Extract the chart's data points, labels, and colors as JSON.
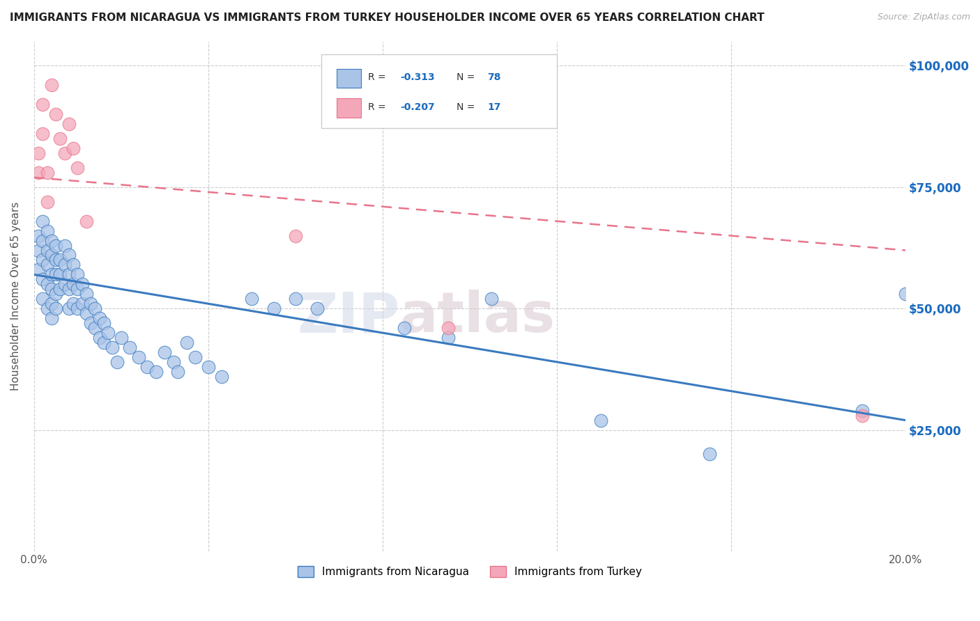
{
  "title": "IMMIGRANTS FROM NICARAGUA VS IMMIGRANTS FROM TURKEY HOUSEHOLDER INCOME OVER 65 YEARS CORRELATION CHART",
  "source": "Source: ZipAtlas.com",
  "ylabel": "Householder Income Over 65 years",
  "xlim": [
    0.0,
    0.2
  ],
  "ylim": [
    0,
    105000
  ],
  "grid_color": "#cccccc",
  "background_color": "#ffffff",
  "nicaragua_color": "#aac4e8",
  "turkey_color": "#f4a7b9",
  "nicaragua_line_color": "#3a7abf",
  "turkey_line_color": "#e8748a",
  "nicaragua_R": "-0.313",
  "nicaragua_N": "78",
  "turkey_R": "-0.207",
  "turkey_N": "17",
  "watermark_zip": "ZIP",
  "watermark_atlas": "atlas",
  "nicaragua_trend_x": [
    0.0,
    0.2
  ],
  "nicaragua_trend_y": [
    57000,
    27000
  ],
  "turkey_trend_x": [
    0.0,
    0.2
  ],
  "turkey_trend_y": [
    77000,
    62000
  ],
  "nicaragua_points_x": [
    0.001,
    0.001,
    0.001,
    0.002,
    0.002,
    0.002,
    0.002,
    0.002,
    0.003,
    0.003,
    0.003,
    0.003,
    0.003,
    0.004,
    0.004,
    0.004,
    0.004,
    0.004,
    0.004,
    0.005,
    0.005,
    0.005,
    0.005,
    0.005,
    0.006,
    0.006,
    0.006,
    0.007,
    0.007,
    0.007,
    0.008,
    0.008,
    0.008,
    0.008,
    0.009,
    0.009,
    0.009,
    0.01,
    0.01,
    0.01,
    0.011,
    0.011,
    0.012,
    0.012,
    0.013,
    0.013,
    0.014,
    0.014,
    0.015,
    0.015,
    0.016,
    0.016,
    0.017,
    0.018,
    0.019,
    0.02,
    0.022,
    0.024,
    0.026,
    0.028,
    0.03,
    0.032,
    0.033,
    0.035,
    0.037,
    0.04,
    0.043,
    0.05,
    0.055,
    0.06,
    0.065,
    0.085,
    0.095,
    0.105,
    0.13,
    0.155,
    0.19,
    0.2
  ],
  "nicaragua_points_y": [
    65000,
    62000,
    58000,
    68000,
    64000,
    60000,
    56000,
    52000,
    66000,
    62000,
    59000,
    55000,
    50000,
    64000,
    61000,
    57000,
    54000,
    51000,
    48000,
    63000,
    60000,
    57000,
    53000,
    50000,
    60000,
    57000,
    54000,
    63000,
    59000,
    55000,
    61000,
    57000,
    54000,
    50000,
    59000,
    55000,
    51000,
    57000,
    54000,
    50000,
    55000,
    51000,
    53000,
    49000,
    51000,
    47000,
    50000,
    46000,
    48000,
    44000,
    47000,
    43000,
    45000,
    42000,
    39000,
    44000,
    42000,
    40000,
    38000,
    37000,
    41000,
    39000,
    37000,
    43000,
    40000,
    38000,
    36000,
    52000,
    50000,
    52000,
    50000,
    46000,
    44000,
    52000,
    27000,
    20000,
    29000,
    53000
  ],
  "turkey_points_x": [
    0.001,
    0.001,
    0.002,
    0.002,
    0.003,
    0.003,
    0.004,
    0.005,
    0.006,
    0.007,
    0.008,
    0.009,
    0.01,
    0.012,
    0.06,
    0.095,
    0.19
  ],
  "turkey_points_y": [
    82000,
    78000,
    92000,
    86000,
    78000,
    72000,
    96000,
    90000,
    85000,
    82000,
    88000,
    83000,
    79000,
    68000,
    65000,
    46000,
    28000
  ]
}
